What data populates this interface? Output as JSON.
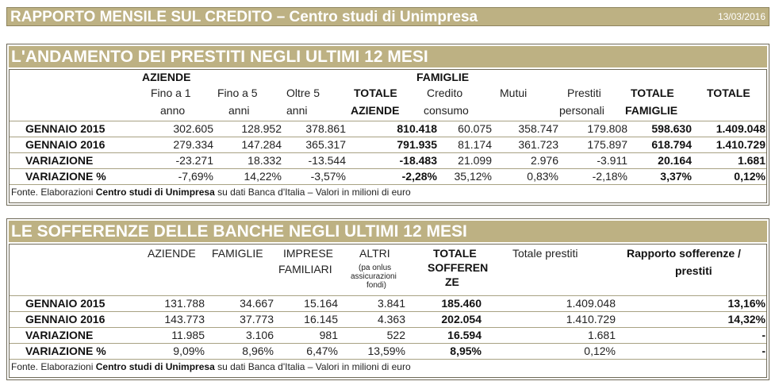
{
  "header": {
    "title": "RAPPORTO MENSILE SUL CREDITO – Centro studi di Unimpresa",
    "date": "13/03/2016"
  },
  "loans": {
    "title": "L'ANDAMENTO DEI PRESTITI NEGLI ULTIMI 12 MESI",
    "group_aziende": "AZIENDE",
    "group_famiglie": "FAMIGLIE",
    "col_fino1_a": "Fino a 1",
    "col_fino1_b": "anno",
    "col_fino5_a": "Fino a 5",
    "col_fino5_b": "anni",
    "col_oltre5_a": "Oltre 5",
    "col_oltre5_b": "anni",
    "col_totaz_a": "TOTALE",
    "col_totaz_b": "AZIENDE",
    "col_cred_a": "Credito",
    "col_cred_b": "consumo",
    "col_mutui": "Mutui",
    "col_prest_a": "Prestiti",
    "col_prest_b": "personali",
    "col_totfam_a": "TOTALE",
    "col_totfam_b": "FAMIGLIE",
    "col_totale": "TOTALE",
    "rows": [
      {
        "label": "GENNAIO 2015",
        "values": [
          "302.605",
          "128.952",
          "378.861",
          "810.418",
          "60.075",
          "358.747",
          "179.808",
          "598.630",
          "1.409.048"
        ]
      },
      {
        "label": "GENNAIO 2016",
        "values": [
          "279.334",
          "147.284",
          "365.317",
          "791.935",
          "81.174",
          "361.723",
          "175.897",
          "618.794",
          "1.410.729"
        ]
      },
      {
        "label": "VARIAZIONE",
        "values": [
          "-23.271",
          "18.332",
          "-13.544",
          "-18.483",
          "21.099",
          "2.976",
          "-3.911",
          "20.164",
          "1.681"
        ]
      },
      {
        "label": "VARIAZIONE %",
        "values": [
          "-7,69%",
          "14,22%",
          "-3,57%",
          "-2,28%",
          "35,12%",
          "0,83%",
          "-2,18%",
          "3,37%",
          "0,12%"
        ]
      }
    ],
    "source_pre": "Fonte. Elaborazioni ",
    "source_bold": "Centro studi di Unimpresa",
    "source_post": " su dati Banca d'Italia – Valori in milioni di euro"
  },
  "npl": {
    "title": "LE SOFFERENZE DELLE BANCHE NEGLI ULTIMI 12 MESI",
    "col_aziende": "AZIENDE",
    "col_famiglie": "FAMIGLIE",
    "col_imprese_a": "IMPRESE",
    "col_imprese_b": "FAMILIARI",
    "col_altri": "ALTRI",
    "col_altri_note_a": "(pa onlus",
    "col_altri_note_b": "assicurazioni",
    "col_altri_note_c": "fondi)",
    "col_totsoff_a": "TOTALE",
    "col_totsoff_b": "SOFFEREN",
    "col_totsoff_c": "ZE",
    "col_totprest": "Totale prestiti",
    "col_rapporto_a": "Rapporto sofferenze /",
    "col_rapporto_b": "prestiti",
    "rows": [
      {
        "label": "GENNAIO 2015",
        "values": [
          "131.788",
          "34.667",
          "15.164",
          "3.841",
          "185.460",
          "1.409.048",
          "13,16%"
        ]
      },
      {
        "label": "GENNAIO 2016",
        "values": [
          "143.773",
          "37.773",
          "16.145",
          "4.363",
          "202.054",
          "1.410.729",
          "14,32%"
        ]
      },
      {
        "label": "VARIAZIONE",
        "values": [
          "11.985",
          "3.106",
          "981",
          "522",
          "16.594",
          "1.681",
          "-"
        ]
      },
      {
        "label": "VARIAZIONE %",
        "values": [
          "9,09%",
          "8,96%",
          "6,47%",
          "13,59%",
          "8,95%",
          "0,12%",
          "-"
        ]
      }
    ],
    "source_pre": "Fonte. Elaborazioni ",
    "source_bold": "Centro studi di Unimpresa",
    "source_post": " su dati Banca d'Italia – Valori in milioni di euro"
  }
}
